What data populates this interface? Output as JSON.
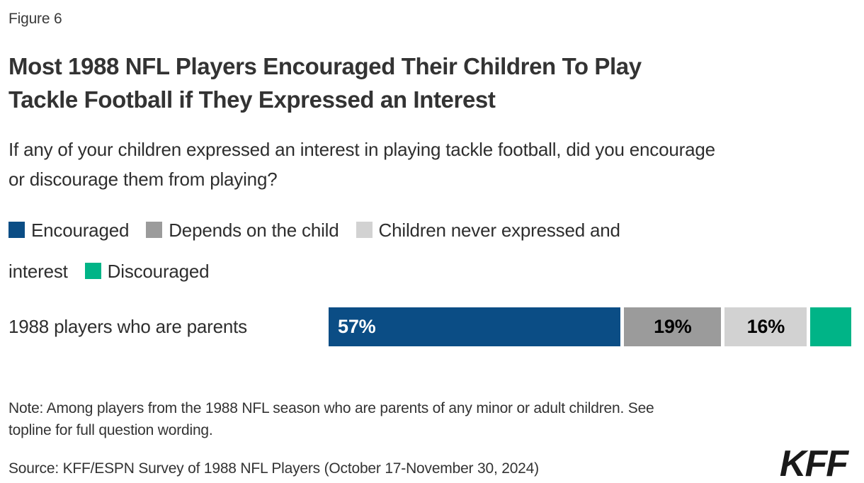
{
  "figure_label": "Figure 6",
  "title": "Most 1988 NFL Players Encouraged Their Children To Play Tackle Football if They Expressed an Interest",
  "subtitle": "If any of your children expressed an interest in playing tackle football, did you encourage or discourage them from playing?",
  "note": "Note: Among players from the 1988 NFL season who are parents of any minor or adult children. See topline for full question wording.",
  "source": "Source: KFF/ESPN Survey of 1988 NFL Players (October 17-November 30, 2024)",
  "logo_text": "KFF",
  "colors": {
    "encouraged": "#0b4d85",
    "depends": "#9b9b9b",
    "never_expressed": "#d2d2d2",
    "discouraged": "#00b487",
    "text": "#333333"
  },
  "chart_data": {
    "type": "bar",
    "orientation": "horizontal-stacked",
    "categories": [
      "1988 players who are parents"
    ],
    "series": [
      {
        "name": "Encouraged",
        "values": [
          57
        ],
        "color": "#0b4d85",
        "data_label": "57%",
        "label_color": "#ffffff",
        "label_align": "left"
      },
      {
        "name": "Depends on the child",
        "values": [
          19
        ],
        "color": "#9b9b9b",
        "data_label": "19%",
        "label_color": "#000000",
        "label_align": "center"
      },
      {
        "name": "Children never expressed and interest",
        "values": [
          16
        ],
        "color": "#d2d2d2",
        "data_label": "16%",
        "label_color": "#000000",
        "label_align": "center"
      },
      {
        "name": "Discouraged",
        "values": [
          8
        ],
        "color": "#00b487",
        "data_label": "",
        "label_color": "#000000",
        "label_align": "center"
      }
    ],
    "xlim": [
      0,
      100
    ],
    "grid": false,
    "legend_position": "top",
    "value_unit": "%"
  }
}
